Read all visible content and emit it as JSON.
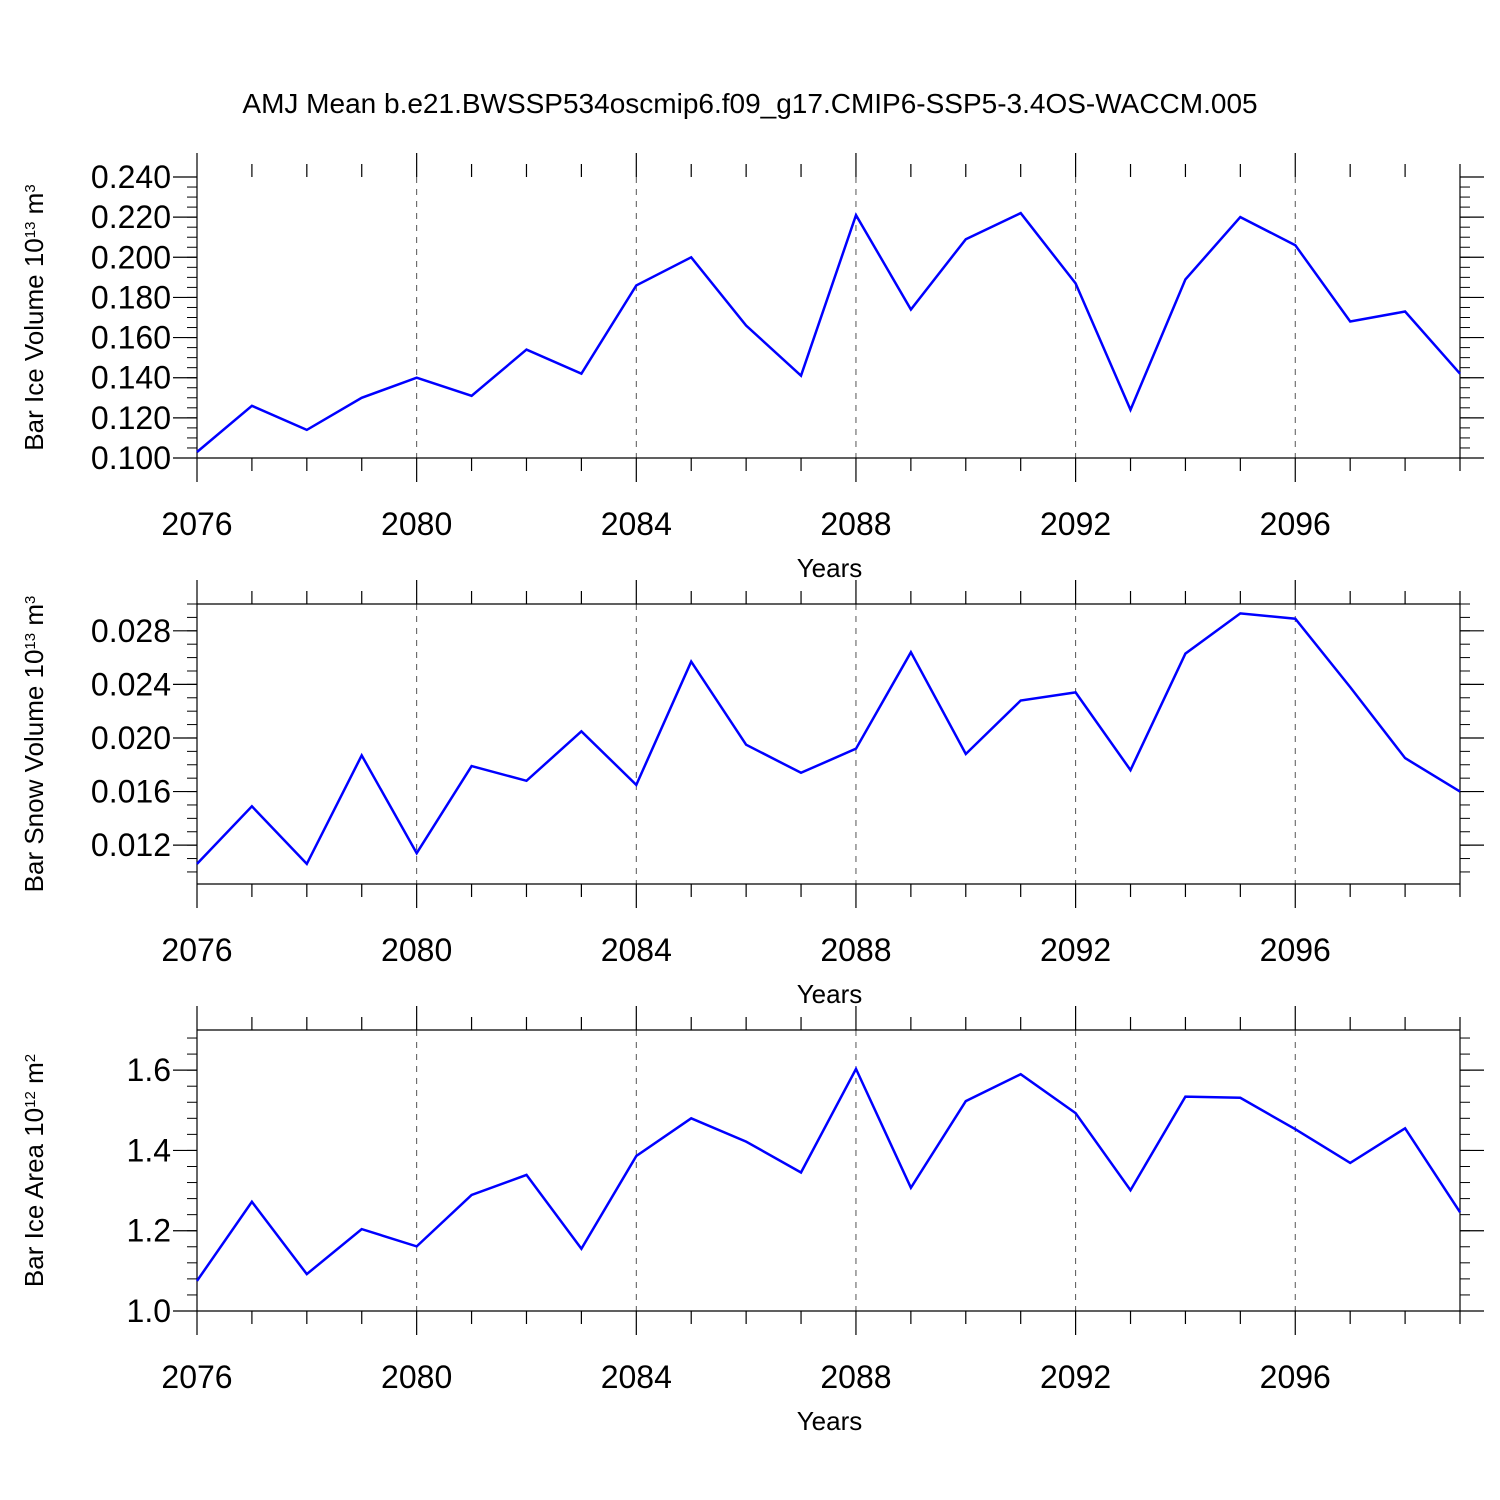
{
  "title": "AMJ Mean b.e21.BWSSP534oscmip6.f09_g17.CMIP6-SSP5-3.4OS-WACCM.005",
  "colors": {
    "line": "#0000ff",
    "axis": "#000000",
    "grid": "#555555",
    "background": "#ffffff"
  },
  "chart_data": [
    {
      "type": "line",
      "title": "",
      "xlabel": "Years",
      "ylabel": {
        "main": "Bar Ice Volume 10",
        "exp": "13",
        "unit": " m",
        "unit_exp": "3"
      },
      "xlim": [
        2076,
        2099
      ],
      "ylim": [
        0.1,
        0.24
      ],
      "x_ticks": [
        2076,
        2080,
        2084,
        2088,
        2092,
        2096
      ],
      "x_tick_labels": [
        "2076",
        "2080",
        "2084",
        "2088",
        "2092",
        "2096"
      ],
      "y_ticks": [
        0.1,
        0.12,
        0.14,
        0.16,
        0.18,
        0.2,
        0.22,
        0.24
      ],
      "y_tick_labels": [
        "0.100",
        "0.120",
        "0.140",
        "0.160",
        "0.180",
        "0.200",
        "0.220",
        "0.240"
      ],
      "y_minor_step": 0.005,
      "top_border": false,
      "grid": "vertical dashed at labeled years",
      "series": [
        {
          "name": "Bar Ice Volume",
          "x": [
            2076,
            2077,
            2078,
            2079,
            2080,
            2081,
            2082,
            2083,
            2084,
            2085,
            2086,
            2087,
            2088,
            2089,
            2090,
            2091,
            2092,
            2093,
            2094,
            2095,
            2096,
            2097,
            2098,
            2099
          ],
          "values": [
            0.103,
            0.126,
            0.114,
            0.13,
            0.14,
            0.131,
            0.154,
            0.142,
            0.186,
            0.2,
            0.166,
            0.141,
            0.221,
            0.174,
            0.209,
            0.222,
            0.187,
            0.124,
            0.189,
            0.22,
            0.206,
            0.168,
            0.173,
            0.142
          ]
        }
      ]
    },
    {
      "type": "line",
      "title": "",
      "xlabel": "Years",
      "ylabel": {
        "main": "Bar Snow Volume 10",
        "exp": "13",
        "unit": " m",
        "unit_exp": "3"
      },
      "xlim": [
        2076,
        2099
      ],
      "ylim": [
        0.0091,
        0.03
      ],
      "x_ticks": [
        2076,
        2080,
        2084,
        2088,
        2092,
        2096
      ],
      "x_tick_labels": [
        "2076",
        "2080",
        "2084",
        "2088",
        "2092",
        "2096"
      ],
      "y_ticks": [
        0.012,
        0.016,
        0.02,
        0.024,
        0.028
      ],
      "y_tick_labels": [
        "0.012",
        "0.016",
        "0.020",
        "0.024",
        "0.028"
      ],
      "y_minor_step": 0.001,
      "top_border": true,
      "grid": "vertical dashed at labeled years",
      "series": [
        {
          "name": "Bar Snow Volume",
          "x": [
            2076,
            2077,
            2078,
            2079,
            2080,
            2081,
            2082,
            2083,
            2084,
            2085,
            2086,
            2087,
            2088,
            2089,
            2090,
            2091,
            2092,
            2093,
            2094,
            2095,
            2096,
            2097,
            2098,
            2099
          ],
          "values": [
            0.0106,
            0.0149,
            0.0106,
            0.0187,
            0.0114,
            0.0179,
            0.0168,
            0.0205,
            0.0165,
            0.0257,
            0.0195,
            0.0174,
            0.0192,
            0.0264,
            0.0188,
            0.0228,
            0.0234,
            0.0176,
            0.0263,
            0.0293,
            0.0289,
            0.0238,
            0.0185,
            0.016
          ]
        }
      ]
    },
    {
      "type": "line",
      "title": "",
      "xlabel": "Years",
      "ylabel": {
        "main": "Bar Ice Area 10",
        "exp": "12",
        "unit": " m",
        "unit_exp": "2"
      },
      "xlim": [
        2076,
        2099
      ],
      "ylim": [
        1.0,
        1.7
      ],
      "x_ticks": [
        2076,
        2080,
        2084,
        2088,
        2092,
        2096
      ],
      "x_tick_labels": [
        "2076",
        "2080",
        "2084",
        "2088",
        "2092",
        "2096"
      ],
      "y_ticks": [
        1.0,
        1.2,
        1.4,
        1.6
      ],
      "y_tick_labels": [
        "1.0",
        "1.2",
        "1.4",
        "1.6"
      ],
      "y_minor_step": 0.04,
      "top_border": true,
      "grid": "vertical dashed at labeled years",
      "series": [
        {
          "name": "Bar Ice Area",
          "x": [
            2076,
            2077,
            2078,
            2079,
            2080,
            2081,
            2082,
            2083,
            2084,
            2085,
            2086,
            2087,
            2088,
            2089,
            2090,
            2091,
            2092,
            2093,
            2094,
            2095,
            2096,
            2097,
            2098,
            2099
          ],
          "values": [
            1.075,
            1.272,
            1.092,
            1.204,
            1.161,
            1.289,
            1.339,
            1.155,
            1.386,
            1.48,
            1.422,
            1.345,
            1.603,
            1.307,
            1.523,
            1.59,
            1.493,
            1.301,
            1.534,
            1.531,
            1.453,
            1.369,
            1.455,
            1.246
          ]
        }
      ]
    }
  ]
}
